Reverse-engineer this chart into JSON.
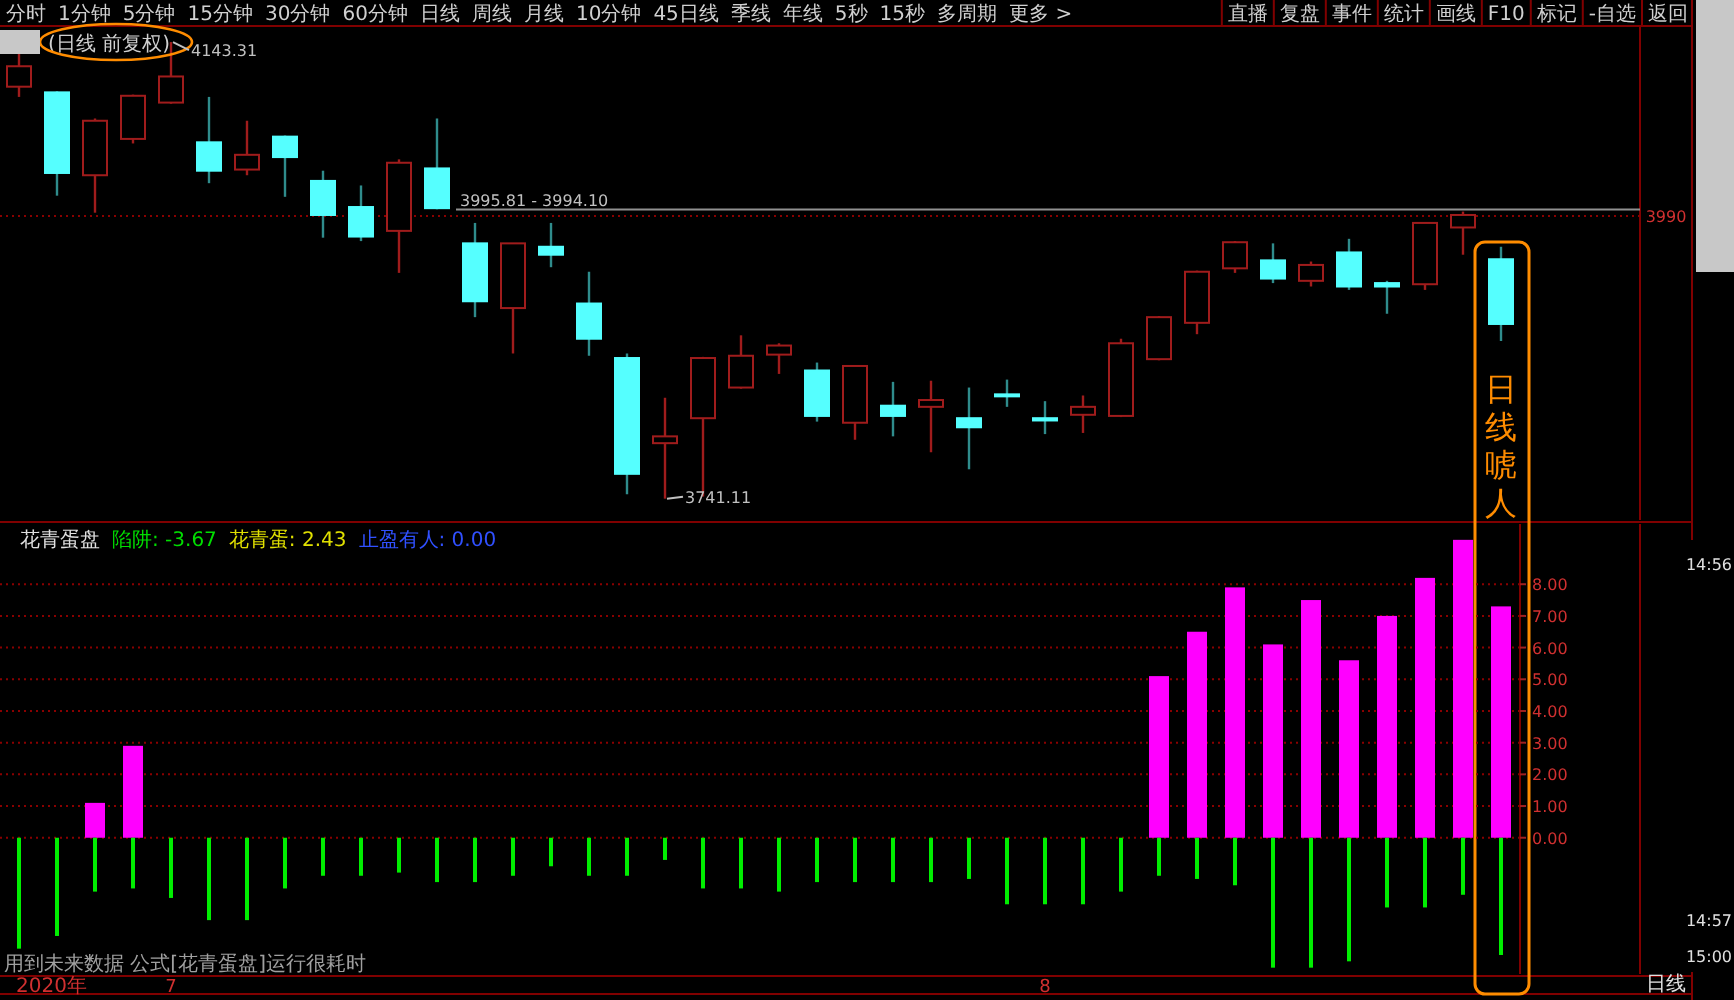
{
  "chart_data": [
    {
      "type": "other",
      "annotations": [
        "分时",
        "1分钟",
        "5分钟",
        "15分钟",
        "30分钟",
        "60分钟",
        "日线",
        "周线",
        "月线",
        "10分钟",
        "45日线",
        "季线",
        "年线",
        "5秒",
        "15秒",
        "多周期",
        "更多 >"
      ]
    },
    {
      "type": "other",
      "annotations": [
        "直播",
        "复盘",
        "事件",
        "统计",
        "画线",
        "F10",
        "标记",
        "-自选",
        "返回"
      ]
    },
    {
      "type": "candlestick",
      "title": "(日线 前复权)",
      "categories": [
        null,
        null,
        null,
        null,
        null,
        null,
        null,
        null,
        null,
        null,
        null,
        null,
        null,
        null,
        null,
        null,
        null,
        null,
        null,
        null,
        null,
        null,
        null,
        null,
        null,
        null,
        null,
        null,
        null,
        null,
        null,
        null,
        null,
        null,
        null,
        null,
        null,
        null,
        null,
        null
      ],
      "ohlc": [
        [
          4104,
          4134,
          4095,
          4122
        ],
        [
          4099,
          4100,
          4008,
          4028
        ],
        [
          4026,
          4076,
          3993,
          4074
        ],
        [
          4058,
          4097,
          4054,
          4096
        ],
        [
          4090,
          4143.31,
          4089,
          4113
        ],
        [
          4055,
          4095,
          4019,
          4030
        ],
        [
          4031,
          4074,
          4026,
          4044
        ],
        [
          4060,
          4061,
          4007,
          4042
        ],
        [
          4021,
          4030,
          3971,
          3991
        ],
        [
          3998,
          4017,
          3968,
          3972
        ],
        [
          3977,
          4040,
          3940,
          4037
        ],
        [
          4032,
          4076,
          3996,
          3997
        ],
        [
          3966,
          3984,
          3901,
          3915
        ],
        [
          3909,
          3966,
          3869,
          3966
        ],
        [
          3963,
          3984,
          3945,
          3956
        ],
        [
          3913,
          3941,
          3867,
          3882
        ],
        [
          3865,
          3869,
          3745,
          3763
        ],
        [
          3790,
          3830,
          3741.11,
          3796
        ],
        [
          3812,
          3866,
          3743,
          3865
        ],
        [
          3839,
          3885,
          3838,
          3867
        ],
        [
          3868,
          3878,
          3851,
          3876
        ],
        [
          3854,
          3861,
          3809,
          3814
        ],
        [
          3808,
          3858,
          3793,
          3858
        ],
        [
          3823,
          3844,
          3796,
          3814
        ],
        [
          3822,
          3845,
          3782,
          3828
        ],
        [
          3812,
          3839,
          3767,
          3804
        ],
        [
          3833,
          3846,
          3822,
          3832
        ],
        [
          3812,
          3827,
          3798,
          3810
        ],
        [
          3815,
          3832,
          3799,
          3822
        ],
        [
          3814,
          3882,
          3813,
          3878
        ],
        [
          3864,
          3902,
          3863,
          3901
        ],
        [
          3896,
          3942,
          3886,
          3941
        ],
        [
          3944,
          3968,
          3940,
          3967
        ],
        [
          3951,
          3966,
          3931,
          3935
        ],
        [
          3933,
          3950,
          3928,
          3947
        ],
        [
          3958,
          3970,
          3925,
          3928
        ],
        [
          3931,
          3933,
          3904,
          3928
        ],
        [
          3930,
          3984,
          3925,
          3984
        ],
        [
          3980,
          3994,
          3956,
          3991
        ],
        [
          3952,
          3963,
          3880,
          3895
        ]
      ],
      "colors": [
        "#a01c1c",
        "#55ffff",
        "#a01c1c",
        "#a01c1c",
        "#a01c1c",
        "#55ffff",
        "#a01c1c",
        "#55ffff",
        "#55ffff",
        "#55ffff",
        "#a01c1c",
        "#55ffff",
        "#55ffff",
        "#a01c1c",
        "#55ffff",
        "#55ffff",
        "#55ffff",
        "#a01c1c",
        "#a01c1c",
        "#a01c1c",
        "#a01c1c",
        "#55ffff",
        "#a01c1c",
        "#55ffff",
        "#a01c1c",
        "#55ffff",
        "#55ffff",
        "#55ffff",
        "#a01c1c",
        "#a01c1c",
        "#a01c1c",
        "#a01c1c",
        "#a01c1c",
        "#55ffff",
        "#a01c1c",
        "#55ffff",
        "#55ffff",
        "#a01c1c",
        "#a01c1c",
        "#55ffff"
      ],
      "ref_lines": [
        {
          "axis": "y",
          "value": 3995.81,
          "label": "3995.81 - 3994.10",
          "color": "#909090"
        },
        {
          "axis": "y",
          "value": 3990,
          "label": "3990",
          "color": "#8a0000",
          "line_style": "dotted"
        }
      ],
      "annotations": [
        "4143.31",
        "3741.11",
        "日线唬人"
      ]
    },
    {
      "type": "bar",
      "title": "花青蛋盘",
      "categories": [
        null,
        null,
        null,
        null,
        "7",
        null,
        null,
        null,
        null,
        null,
        null,
        null,
        null,
        null,
        null,
        null,
        null,
        null,
        null,
        null,
        null,
        null,
        null,
        null,
        null,
        null,
        null,
        "8",
        null,
        null,
        null,
        null,
        null,
        null,
        null,
        null,
        null,
        null,
        null,
        null
      ],
      "series": [
        {
          "color": "#ff00ff",
          "values": [
            null,
            null,
            1.1,
            2.9,
            null,
            null,
            null,
            null,
            null,
            null,
            null,
            null,
            null,
            null,
            null,
            null,
            null,
            null,
            null,
            null,
            null,
            null,
            null,
            null,
            null,
            null,
            null,
            null,
            null,
            null,
            5.1,
            6.5,
            7.9,
            6.1,
            7.5,
            5.6,
            7.0,
            8.2,
            9.4,
            7.3
          ]
        },
        {
          "color": "#00ee00",
          "values": [
            -3.5,
            -3.1,
            -1.7,
            -1.6,
            -1.9,
            -2.6,
            -2.6,
            -1.6,
            -1.2,
            -1.2,
            -1.1,
            -1.4,
            -1.4,
            -1.2,
            -0.9,
            -1.2,
            -1.2,
            -0.7,
            -1.6,
            -1.6,
            -1.7,
            -1.4,
            -1.4,
            -1.4,
            -1.4,
            -1.3,
            -2.1,
            -2.1,
            -2.1,
            -1.7,
            -1.2,
            -1.3,
            -1.5,
            -4.1,
            -4.1,
            -3.9,
            -2.2,
            -2.2,
            -1.8,
            -3.7
          ]
        }
      ],
      "ylim": [
        -4.3,
        9.9
      ],
      "yticks": [
        {
          "value": 0,
          "label": "0.00"
        },
        {
          "value": 1,
          "label": "1.00"
        },
        {
          "value": 2,
          "label": "2.00"
        },
        {
          "value": 3,
          "label": "3.00"
        },
        {
          "value": 4,
          "label": "4.00"
        },
        {
          "value": 5,
          "label": "5.00"
        },
        {
          "value": 6,
          "label": "6.00"
        },
        {
          "value": 7,
          "label": "7.00"
        },
        {
          "value": 8,
          "label": "8.00"
        }
      ],
      "grid": "y",
      "annotations": [
        "陷阱: -3.67",
        "花青蛋: 2.43",
        "止盈有人: 0.00",
        "用到未来数据 公式[花青蛋盘]运行很耗时",
        "2020年"
      ]
    },
    {
      "type": "other",
      "annotations": [
        "14:56",
        "14:57",
        "15:00",
        "日线"
      ]
    }
  ]
}
